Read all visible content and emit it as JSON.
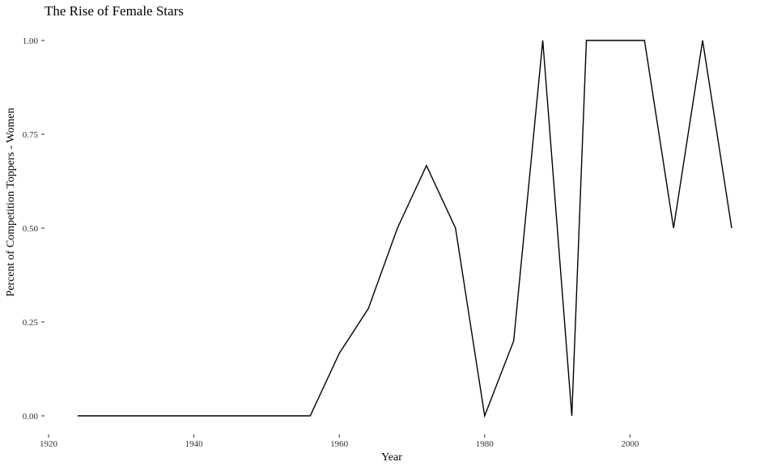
{
  "chart_data": {
    "type": "line",
    "title": "The Rise of Female Stars",
    "xlabel": "Year",
    "ylabel": "Percent of Competition Toppers - Women",
    "xlim": [
      1920,
      2016
    ],
    "ylim": [
      0,
      1
    ],
    "x_ticks": [
      1920,
      1940,
      1960,
      1980,
      2000
    ],
    "y_ticks": [
      "0.00",
      "0.25",
      "0.50",
      "0.75",
      "1.00"
    ],
    "grid": false,
    "legend": "none",
    "series": [
      {
        "color": "#000000",
        "x": [
          1924,
          1928,
          1932,
          1936,
          1948,
          1952,
          1956,
          1960,
          1964,
          1968,
          1972,
          1976,
          1980,
          1984,
          1988,
          1992,
          1994,
          1998,
          2002,
          2006,
          2010,
          2014
        ],
        "y": [
          0,
          0,
          0,
          0,
          0,
          0,
          0,
          0.1667,
          0.2857,
          0.5,
          0.6667,
          0.5,
          0,
          0.2,
          1,
          0,
          1,
          1,
          1,
          0.5,
          1,
          0.5
        ]
      }
    ]
  }
}
